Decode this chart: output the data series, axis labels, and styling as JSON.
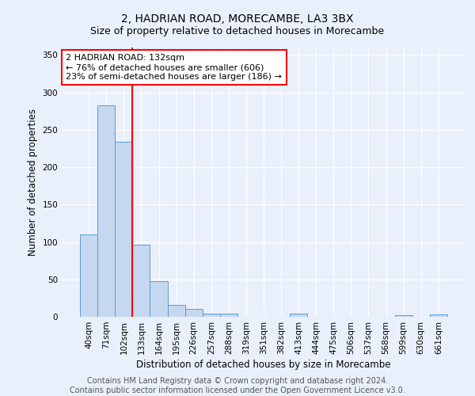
{
  "title": "2, HADRIAN ROAD, MORECAMBE, LA3 3BX",
  "subtitle": "Size of property relative to detached houses in Morecambe",
  "xlabel": "Distribution of detached houses by size in Morecambe",
  "ylabel": "Number of detached properties",
  "categories": [
    "40sqm",
    "71sqm",
    "102sqm",
    "133sqm",
    "164sqm",
    "195sqm",
    "226sqm",
    "257sqm",
    "288sqm",
    "319sqm",
    "351sqm",
    "382sqm",
    "413sqm",
    "444sqm",
    "475sqm",
    "506sqm",
    "537sqm",
    "568sqm",
    "599sqm",
    "630sqm",
    "661sqm"
  ],
  "values": [
    110,
    283,
    234,
    96,
    48,
    16,
    11,
    4,
    4,
    0,
    0,
    0,
    4,
    0,
    0,
    0,
    0,
    0,
    2,
    0,
    3
  ],
  "bar_color": "#c5d8f0",
  "bar_edge_color": "#5b9bd5",
  "red_line_x": 2.5,
  "annotation_line1": "2 HADRIAN ROAD: 132sqm",
  "annotation_line2": "← 76% of detached houses are smaller (606)",
  "annotation_line3": "23% of semi-detached houses are larger (186) →",
  "annotation_box_color": "white",
  "annotation_box_edge_color": "red",
  "red_line_color": "red",
  "ylim": [
    0,
    360
  ],
  "yticks": [
    0,
    50,
    100,
    150,
    200,
    250,
    300,
    350
  ],
  "background_color": "#eaf0fb",
  "grid_color": "#ffffff",
  "footer_line1": "Contains HM Land Registry data © Crown copyright and database right 2024.",
  "footer_line2": "Contains public sector information licensed under the Open Government Licence v3.0.",
  "title_fontsize": 10,
  "subtitle_fontsize": 9,
  "axis_label_fontsize": 8.5,
  "tick_fontsize": 7.5,
  "annotation_fontsize": 8,
  "footer_fontsize": 7
}
